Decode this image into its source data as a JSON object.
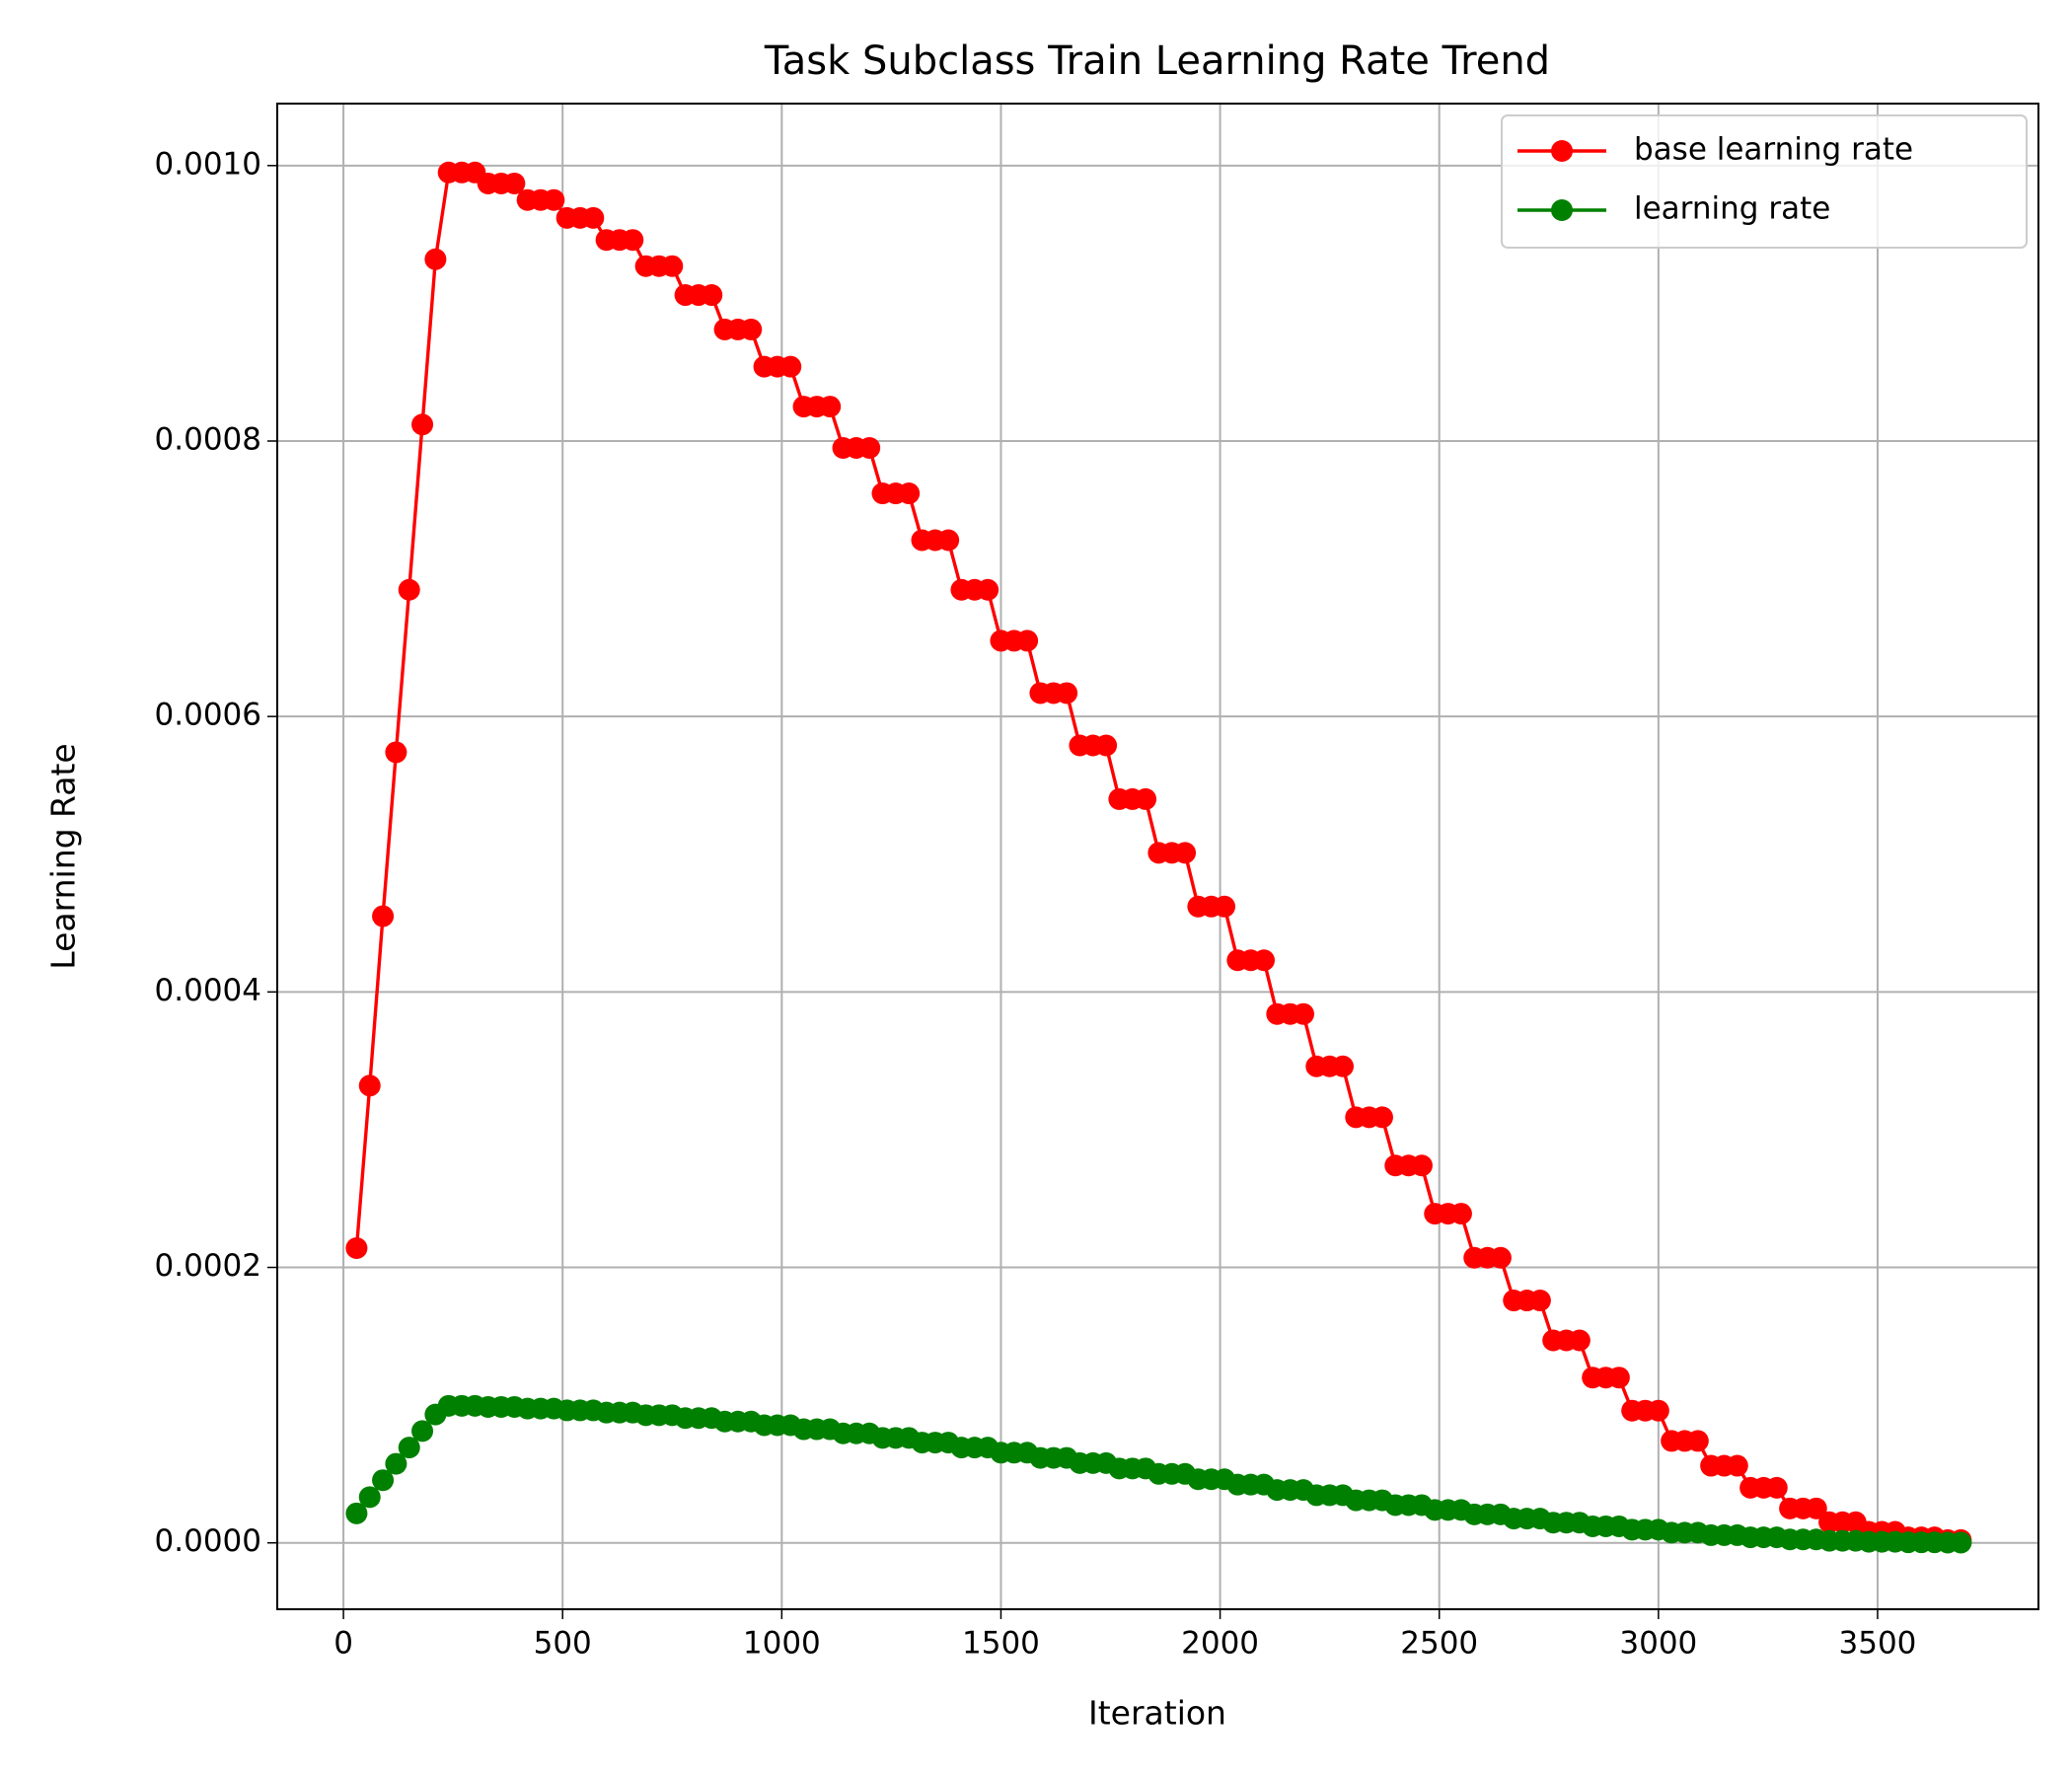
{
  "chart_data": {
    "type": "line",
    "title": "Task Subclass Train Learning Rate Trend",
    "xlabel": "Iteration",
    "ylabel": "Learning Rate",
    "x": [
      30,
      60,
      90,
      120,
      150,
      180,
      210,
      240,
      270,
      300,
      330,
      360,
      390,
      420,
      450,
      480,
      510,
      540,
      570,
      600,
      630,
      660,
      690,
      720,
      750,
      780,
      810,
      840,
      870,
      900,
      930,
      960,
      990,
      1020,
      1050,
      1080,
      1110,
      1140,
      1170,
      1200,
      1230,
      1260,
      1290,
      1320,
      1350,
      1380,
      1410,
      1440,
      1470,
      1500,
      1530,
      1560,
      1590,
      1620,
      1650,
      1680,
      1710,
      1740,
      1770,
      1800,
      1830,
      1860,
      1890,
      1920,
      1950,
      1980,
      2010,
      2040,
      2070,
      2100,
      2130,
      2160,
      2190,
      2220,
      2250,
      2280,
      2310,
      2340,
      2370,
      2400,
      2430,
      2460,
      2490,
      2520,
      2550,
      2580,
      2610,
      2640,
      2670,
      2700,
      2730,
      2760,
      2790,
      2820,
      2850,
      2880,
      2910,
      2940,
      2970,
      3000,
      3030,
      3060,
      3090,
      3120,
      3150,
      3180,
      3210,
      3240,
      3270,
      3300,
      3330,
      3360,
      3390,
      3420,
      3450,
      3480,
      3510,
      3540,
      3570,
      3600,
      3630,
      3660,
      3690
    ],
    "series": [
      {
        "name": "base learning rate",
        "color": "#ff0000",
        "values": [
          0.000214,
          0.000332,
          0.000455,
          0.000574,
          0.000692,
          0.000812,
          0.000932,
          0.000995,
          0.000995,
          0.000995,
          0.000987,
          0.000987,
          0.000987,
          0.000975,
          0.000975,
          0.000975,
          0.000962,
          0.000962,
          0.000962,
          0.000946,
          0.000946,
          0.000946,
          0.000927,
          0.000927,
          0.000927,
          0.000906,
          0.000906,
          0.000906,
          0.000881,
          0.000881,
          0.000881,
          0.000854,
          0.000854,
          0.000854,
          0.000825,
          0.000825,
          0.000825,
          0.000795,
          0.000795,
          0.000795,
          0.000762,
          0.000762,
          0.000762,
          0.000728,
          0.000728,
          0.000728,
          0.000692,
          0.000692,
          0.000692,
          0.000655,
          0.000655,
          0.000655,
          0.000617,
          0.000617,
          0.000617,
          0.000579,
          0.000579,
          0.000579,
          0.00054,
          0.00054,
          0.00054,
          0.000501,
          0.000501,
          0.000501,
          0.000462,
          0.000462,
          0.000462,
          0.000423,
          0.000423,
          0.000423,
          0.000384,
          0.000384,
          0.000384,
          0.000346,
          0.000346,
          0.000346,
          0.000309,
          0.000309,
          0.000309,
          0.000274,
          0.000274,
          0.000274,
          0.000239,
          0.000239,
          0.000239,
          0.000207,
          0.000207,
          0.000207,
          0.000176,
          0.000176,
          0.000176,
          0.000147,
          0.000147,
          0.000147,
          0.00012,
          0.00012,
          0.00012,
          9.6e-05,
          9.6e-05,
          9.6e-05,
          7.4e-05,
          7.4e-05,
          7.4e-05,
          5.6e-05,
          5.6e-05,
          5.6e-05,
          4e-05,
          4e-05,
          4e-05,
          2.5e-05,
          2.5e-05,
          2.5e-05,
          1.5e-05,
          1.5e-05,
          1.5e-05,
          8e-06,
          8e-06,
          8e-06,
          4e-06,
          4e-06,
          4e-06,
          2e-06,
          2e-06
        ]
      },
      {
        "name": "learning rate",
        "color": "#008000",
        "values": [
          2.14e-05,
          3.32e-05,
          4.55e-05,
          5.74e-05,
          6.92e-05,
          8.12e-05,
          9.32e-05,
          9.95e-05,
          9.95e-05,
          9.95e-05,
          9.87e-05,
          9.87e-05,
          9.87e-05,
          9.75e-05,
          9.75e-05,
          9.75e-05,
          9.62e-05,
          9.62e-05,
          9.62e-05,
          9.46e-05,
          9.46e-05,
          9.46e-05,
          9.27e-05,
          9.27e-05,
          9.27e-05,
          9.06e-05,
          9.06e-05,
          9.06e-05,
          8.81e-05,
          8.81e-05,
          8.81e-05,
          8.54e-05,
          8.54e-05,
          8.54e-05,
          8.25e-05,
          8.25e-05,
          8.25e-05,
          7.95e-05,
          7.95e-05,
          7.95e-05,
          7.62e-05,
          7.62e-05,
          7.62e-05,
          7.28e-05,
          7.28e-05,
          7.28e-05,
          6.92e-05,
          6.92e-05,
          6.92e-05,
          6.55e-05,
          6.55e-05,
          6.55e-05,
          6.17e-05,
          6.17e-05,
          6.17e-05,
          5.79e-05,
          5.79e-05,
          5.79e-05,
          5.4e-05,
          5.4e-05,
          5.4e-05,
          5.01e-05,
          5.01e-05,
          5.01e-05,
          4.62e-05,
          4.62e-05,
          4.62e-05,
          4.23e-05,
          4.23e-05,
          4.23e-05,
          3.84e-05,
          3.84e-05,
          3.84e-05,
          3.46e-05,
          3.46e-05,
          3.46e-05,
          3.09e-05,
          3.09e-05,
          3.09e-05,
          2.74e-05,
          2.74e-05,
          2.74e-05,
          2.39e-05,
          2.39e-05,
          2.39e-05,
          2.07e-05,
          2.07e-05,
          2.07e-05,
          1.76e-05,
          1.76e-05,
          1.76e-05,
          1.47e-05,
          1.47e-05,
          1.47e-05,
          1.2e-05,
          1.2e-05,
          1.2e-05,
          9.6e-06,
          9.6e-06,
          9.6e-06,
          7.4e-06,
          7.4e-06,
          7.4e-06,
          5.6e-06,
          5.6e-06,
          5.6e-06,
          4e-06,
          4e-06,
          4e-06,
          2.5e-06,
          2.5e-06,
          2.5e-06,
          1.5e-06,
          1.5e-06,
          1.5e-06,
          8e-07,
          8e-07,
          8e-07,
          4e-07,
          4e-07,
          4e-07,
          2e-07,
          2e-07
        ]
      }
    ],
    "xlim": [
      -151,
      3867
    ],
    "ylim": [
      -4.82e-05,
      0.001045
    ],
    "xticks": [
      0,
      500,
      1000,
      1500,
      2000,
      2500,
      3000,
      3500
    ],
    "yticks": [
      {
        "value": 0,
        "label": "0.0000"
      },
      {
        "value": 0.0002,
        "label": "0.0002"
      },
      {
        "value": 0.0004,
        "label": "0.0004"
      },
      {
        "value": 0.0006,
        "label": "0.0006"
      },
      {
        "value": 0.0008,
        "label": "0.0008"
      },
      {
        "value": 0.001,
        "label": "0.0010"
      }
    ],
    "grid": true,
    "legend": "upper right"
  }
}
